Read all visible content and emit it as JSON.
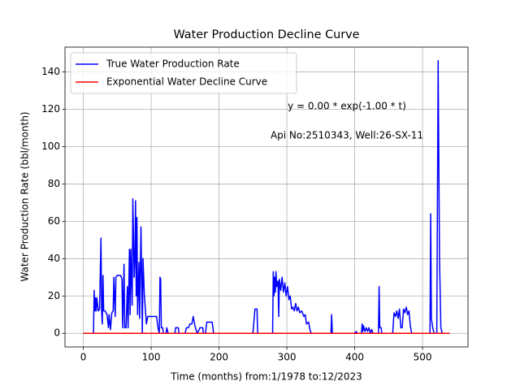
{
  "chart_data": {
    "type": "line",
    "title": "Water Production Decline Curve",
    "xlabel": "Time (months) from:1/1978 to:12/2023",
    "ylabel": "Water Production Rate (bbl/month)",
    "annotations": [
      "y = 0.00 * exp(-1.00 * t)",
      "Api No:2510343, Well:26-SX-11"
    ],
    "xlim": [
      -27,
      567
    ],
    "ylim": [
      -7.3,
      153.3
    ],
    "xticks": [
      0,
      100,
      200,
      300,
      400,
      500
    ],
    "yticks": [
      0,
      20,
      40,
      60,
      80,
      100,
      120,
      140
    ],
    "grid": true,
    "legend": "upper left",
    "series": [
      {
        "name": "True Water Production Rate",
        "color": "#0000ff",
        "x": [
          0,
          15,
          16,
          17,
          18,
          19,
          20,
          22,
          24,
          26,
          27,
          28,
          29,
          30,
          32,
          35,
          37,
          38,
          40,
          42,
          44,
          45,
          47,
          48,
          50,
          55,
          57,
          58,
          60,
          61,
          63,
          65,
          66,
          68,
          69,
          70,
          72,
          73,
          75,
          76,
          77,
          78,
          79,
          80,
          82,
          83,
          85,
          86,
          87,
          88,
          90,
          92,
          93,
          95,
          100,
          105,
          108,
          110,
          112,
          113,
          114,
          115,
          117,
          118,
          122,
          123,
          125,
          135,
          136,
          140,
          141,
          150,
          152,
          155,
          157,
          160,
          162,
          164,
          166,
          168,
          172,
          176,
          177,
          180,
          182,
          190,
          192,
          250,
          253,
          256,
          257,
          279,
          280,
          281,
          282,
          283,
          284,
          285,
          287,
          288,
          289,
          291,
          293,
          295,
          297,
          299,
          301,
          303,
          305,
          307,
          309,
          311,
          313,
          315,
          317,
          319,
          322,
          325,
          327,
          329,
          332,
          334,
          336,
          365,
          366,
          367,
          400,
          402,
          404,
          410,
          411,
          412,
          413,
          415,
          417,
          419,
          421,
          423,
          425,
          427,
          435,
          436,
          437,
          439,
          440,
          456,
          458,
          460,
          462,
          464,
          466,
          468,
          470,
          472,
          474,
          476,
          478,
          480,
          482,
          484,
          511,
          512,
          513,
          515,
          517,
          521,
          523,
          525,
          527,
          529,
          540
        ],
        "values": [
          0,
          0,
          23,
          12,
          19,
          12,
          19,
          12,
          13,
          51,
          12,
          5,
          31,
          12,
          12,
          10,
          3,
          10,
          2,
          11,
          12,
          30,
          9,
          30,
          31,
          31,
          29,
          3,
          37,
          3,
          3,
          25,
          3,
          45,
          10,
          45,
          15,
          72,
          30,
          40,
          71,
          20,
          62,
          10,
          38,
          8,
          57,
          30,
          0,
          40,
          20,
          10,
          5,
          9,
          9,
          9,
          9,
          3,
          0,
          30,
          29,
          3,
          3,
          0,
          0,
          3,
          0,
          0,
          3,
          3,
          0,
          0,
          3,
          3,
          5,
          5,
          9,
          5,
          2,
          0,
          3,
          3,
          0,
          0,
          6,
          6,
          0,
          0,
          13,
          13,
          0,
          0,
          33,
          20,
          30,
          22,
          33,
          25,
          28,
          9,
          29,
          23,
          30,
          22,
          27,
          20,
          25,
          18,
          20,
          13,
          14,
          12,
          16,
          12,
          14,
          11,
          12,
          9,
          10,
          5,
          6,
          2,
          0,
          0,
          10,
          0,
          0,
          1,
          0,
          0,
          5,
          1,
          4,
          1,
          3,
          1,
          3,
          0,
          2,
          0,
          0,
          25,
          3,
          3,
          0,
          0,
          11,
          9,
          12,
          8,
          13,
          3,
          3,
          13,
          11,
          14,
          10,
          12,
          4,
          0,
          0,
          64,
          8,
          3,
          0,
          0,
          146,
          40,
          3,
          0,
          0
        ]
      },
      {
        "name": "Exponential Water Decline Curve",
        "color": "#ff0000",
        "x": [
          0,
          540
        ],
        "values": [
          0,
          0
        ]
      }
    ]
  }
}
